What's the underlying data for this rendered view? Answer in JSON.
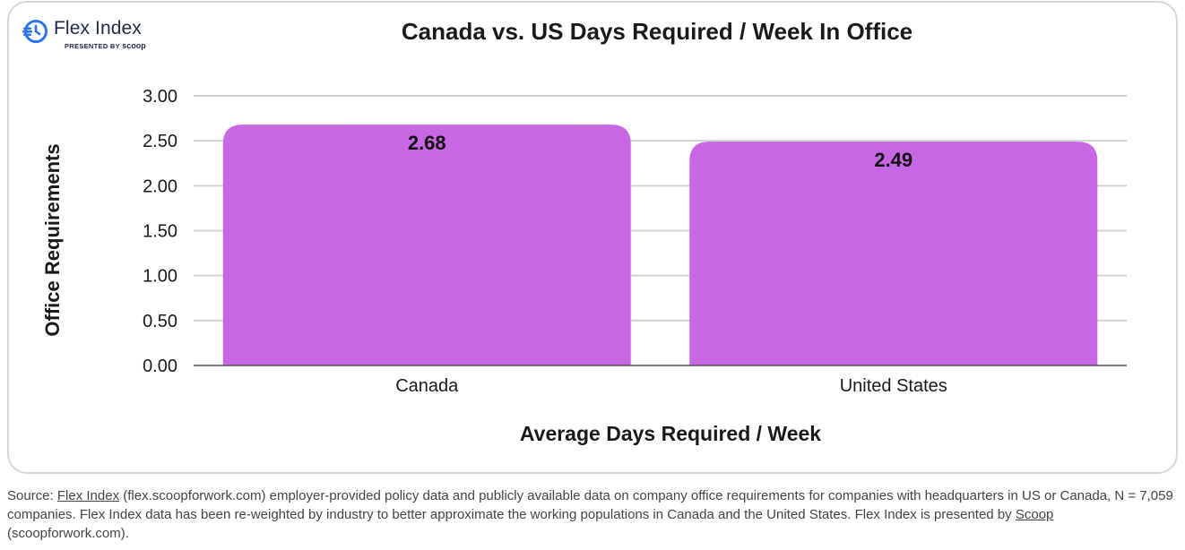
{
  "logo": {
    "brand": "Flex Index",
    "presented_by": "PRESENTED BY",
    "scoop": "scoop"
  },
  "chart_data": {
    "type": "bar",
    "title": "Canada vs. US Days Required / Week In Office",
    "xlabel": "Average Days Required / Week",
    "ylabel": "Office Requirements",
    "categories": [
      "Canada",
      "United States"
    ],
    "values": [
      2.68,
      2.49
    ],
    "value_labels": [
      "2.68",
      "2.49"
    ],
    "ylim": [
      0,
      3
    ],
    "yticks": [
      0,
      0.5,
      1,
      1.5,
      2,
      2.5,
      3
    ],
    "ytick_labels": [
      "0.00",
      "0.50",
      "1.00",
      "1.50",
      "2.00",
      "2.50",
      "3.00"
    ],
    "grid": true,
    "colors": {
      "bar": "#c867e4",
      "grid": "#d2d2d2",
      "axis": "#555555"
    }
  },
  "footer": {
    "source_prefix": "Source: ",
    "link1": "Flex Index",
    "text1": " (flex.scoopforwork.com) employer-provided policy data and publicly available data on company office requirements for companies with headquarters in US or Canada, N = 7,059 companies. Flex Index data has been re-weighted by industry to better approximate the working populations in Canada and the United States. Flex Index is presented by ",
    "link2": "Scoop",
    "text2": " (scoopforwork.com)."
  }
}
